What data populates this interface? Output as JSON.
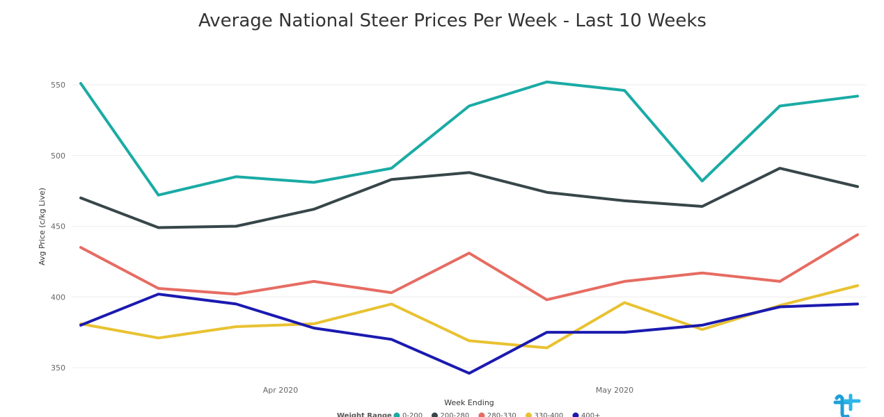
{
  "chart_data": {
    "type": "line",
    "title": "Average National Steer Prices Per Week - Last 10 Weeks",
    "xlabel": "Week Ending",
    "ylabel": "Avg Price (c/kg Live)",
    "ylim": [
      340,
      560
    ],
    "yticks": [
      350,
      400,
      450,
      500,
      550
    ],
    "xtick_labels": [
      "Apr 2020",
      "May 2020"
    ],
    "grid": true,
    "legend_position": "bottom",
    "legend_title": "Weight Range",
    "points": 11,
    "series": [
      {
        "name": "0-200",
        "color": "#1aaba5",
        "values": [
          551,
          472,
          485,
          481,
          491,
          535,
          552,
          546,
          482,
          535,
          542
        ]
      },
      {
        "name": "200-280",
        "color": "#374649",
        "values": [
          470,
          449,
          450,
          462,
          483,
          488,
          474,
          468,
          464,
          491,
          478
        ]
      },
      {
        "name": "280-330",
        "color": "#e66c62",
        "values": [
          435,
          406,
          402,
          411,
          403,
          431,
          398,
          411,
          417,
          411,
          444
        ]
      },
      {
        "name": "330-400",
        "color": "#e8c232",
        "values": [
          381,
          371,
          379,
          381,
          395,
          369,
          364,
          396,
          377,
          394,
          408
        ]
      },
      {
        "name": "400+",
        "color": "#1b1ab0",
        "values": [
          380,
          402,
          395,
          378,
          370,
          346,
          375,
          375,
          380,
          393,
          395
        ]
      }
    ]
  },
  "logo": {
    "name": "brand-logo",
    "color": "#1b9fd8"
  }
}
